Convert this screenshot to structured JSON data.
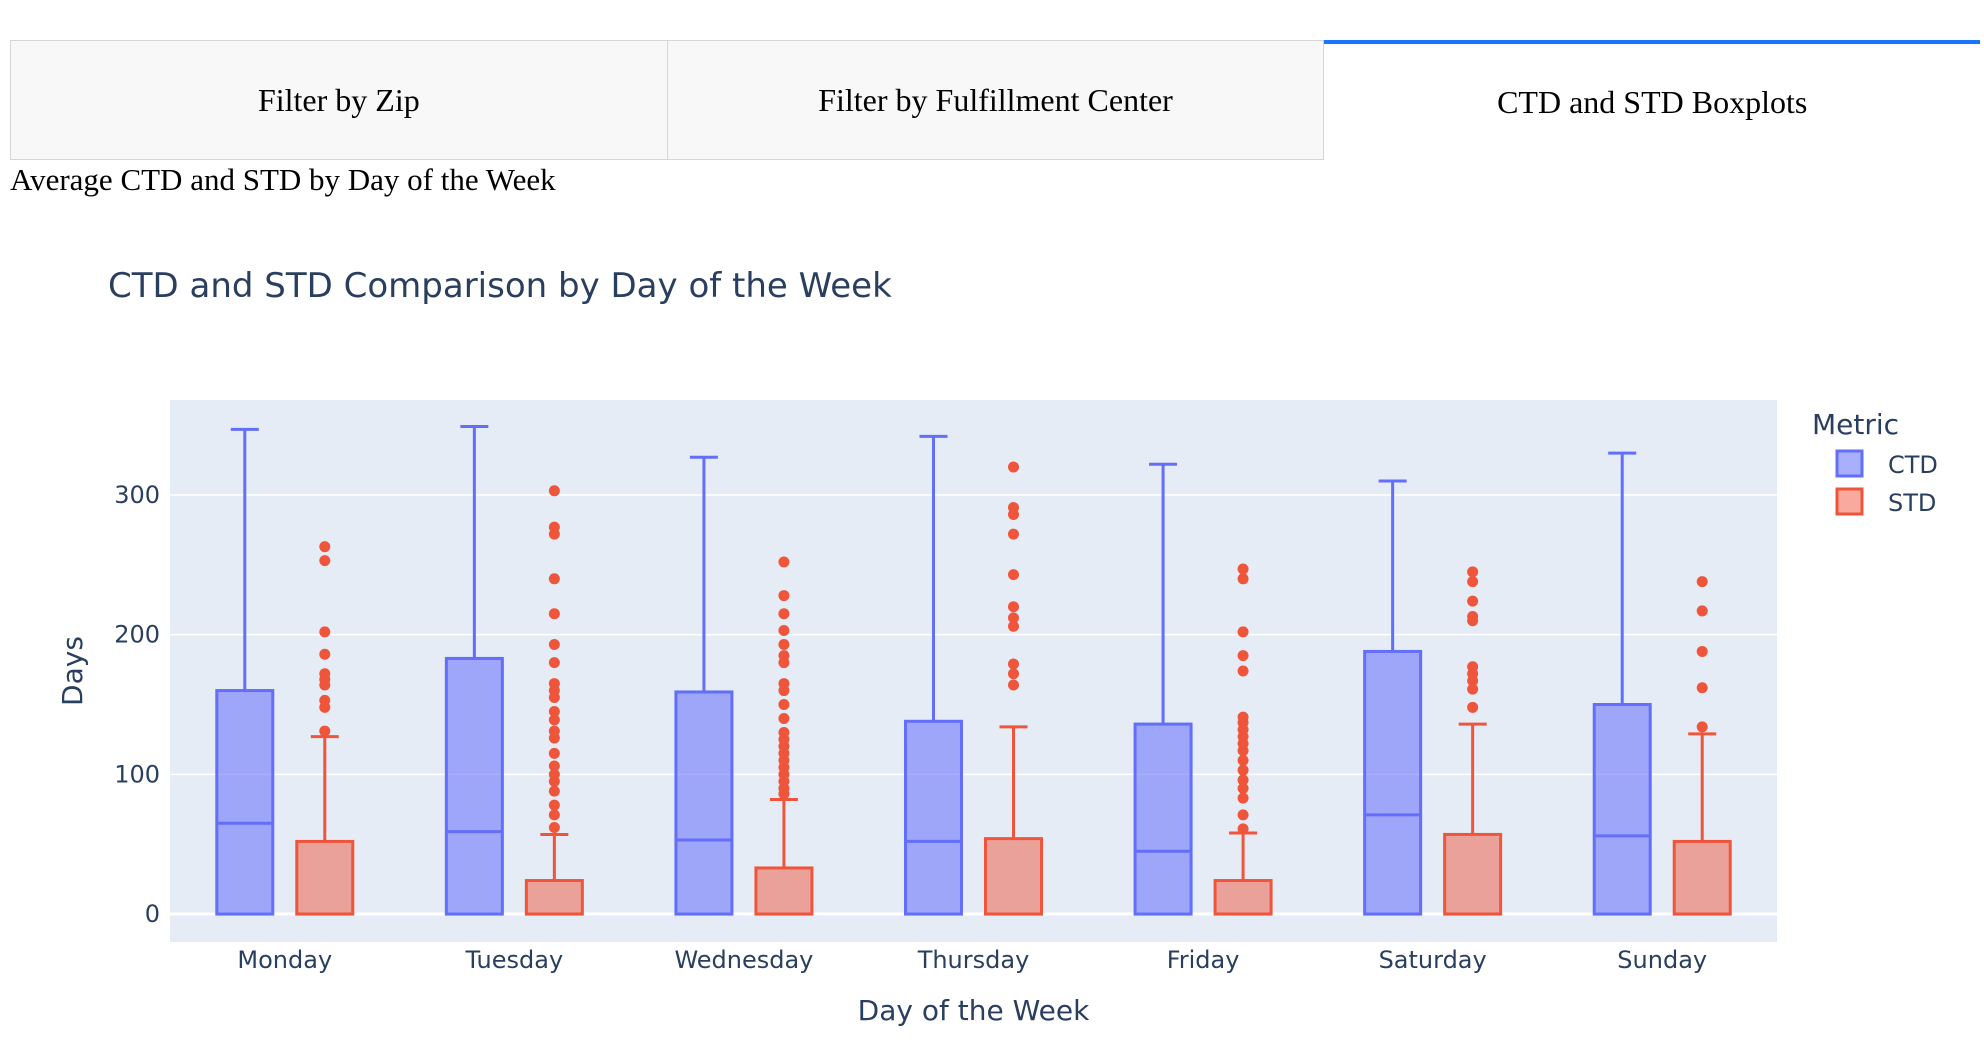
{
  "tabs": [
    {
      "label": "Filter by Zip",
      "selected": false
    },
    {
      "label": "Filter by Fulfillment Center",
      "selected": false
    },
    {
      "label": "CTD and STD Boxplots",
      "selected": true
    }
  ],
  "section_title": "Average CTD and STD by Day of the Week",
  "colors": {
    "ctd": "#636efa",
    "std": "#ef553b",
    "plot_bg": "#e5ecf6",
    "text": "#2a3f5f",
    "tab_accent": "#1975fa"
  },
  "chart_data": {
    "type": "box",
    "title": "CTD and STD Comparison by Day of the Week",
    "xlabel": "Day of the Week",
    "ylabel": "Days",
    "ylim": [
      -20,
      368
    ],
    "yticks": [
      0,
      100,
      200,
      300
    ],
    "categories": [
      "Monday",
      "Tuesday",
      "Wednesday",
      "Thursday",
      "Friday",
      "Saturday",
      "Sunday"
    ],
    "legend_title": "Metric",
    "legend_position": "top-right",
    "grid": true,
    "series": [
      {
        "name": "CTD",
        "boxes": [
          {
            "min": 0,
            "q1": 0,
            "median": 65,
            "q3": 160,
            "max": 347,
            "outliers": []
          },
          {
            "min": 0,
            "q1": 0,
            "median": 59,
            "q3": 183,
            "max": 349,
            "outliers": []
          },
          {
            "min": 0,
            "q1": 0,
            "median": 53,
            "q3": 159,
            "max": 327,
            "outliers": []
          },
          {
            "min": 0,
            "q1": 0,
            "median": 52,
            "q3": 138,
            "max": 342,
            "outliers": []
          },
          {
            "min": 0,
            "q1": 0,
            "median": 45,
            "q3": 136,
            "max": 322,
            "outliers": []
          },
          {
            "min": 0,
            "q1": 0,
            "median": 71,
            "q3": 188,
            "max": 310,
            "outliers": []
          },
          {
            "min": 0,
            "q1": 0,
            "median": 56,
            "q3": 150,
            "max": 330,
            "outliers": []
          }
        ]
      },
      {
        "name": "STD",
        "boxes": [
          {
            "min": 0,
            "q1": 0,
            "median": 0,
            "q3": 52,
            "max": 127,
            "outliers": [
              131,
              148,
              153,
              164,
              168,
              172,
              186,
              202,
              253,
              263
            ]
          },
          {
            "min": 0,
            "q1": 0,
            "median": 0,
            "q3": 24,
            "max": 57,
            "outliers": [
              62,
              71,
              78,
              88,
              95,
              100,
              106,
              115,
              126,
              131,
              139,
              145,
              155,
              160,
              165,
              180,
              193,
              215,
              240,
              272,
              277,
              303
            ]
          },
          {
            "min": 0,
            "q1": 0,
            "median": 0,
            "q3": 33,
            "max": 82,
            "outliers": [
              86,
              90,
              95,
              100,
              105,
              110,
              115,
              120,
              125,
              130,
              140,
              150,
              160,
              165,
              180,
              185,
              193,
              203,
              215,
              228,
              252
            ]
          },
          {
            "min": 0,
            "q1": 0,
            "median": 0,
            "q3": 54,
            "max": 134,
            "outliers": [
              164,
              172,
              179,
              206,
              212,
              220,
              243,
              272,
              286,
              291,
              320
            ]
          },
          {
            "min": 0,
            "q1": 0,
            "median": 0,
            "q3": 24,
            "max": 58,
            "outliers": [
              61,
              71,
              83,
              90,
              96,
              103,
              110,
              117,
              122,
              127,
              132,
              137,
              141,
              174,
              185,
              202,
              240,
              247
            ]
          },
          {
            "min": 0,
            "q1": 0,
            "median": 0,
            "q3": 57,
            "max": 136,
            "outliers": [
              148,
              161,
              167,
              172,
              177,
              210,
              213,
              224,
              238,
              245
            ]
          },
          {
            "min": 0,
            "q1": 0,
            "median": 0,
            "q3": 52,
            "max": 129,
            "outliers": [
              134,
              162,
              188,
              217,
              238
            ]
          }
        ]
      }
    ]
  }
}
